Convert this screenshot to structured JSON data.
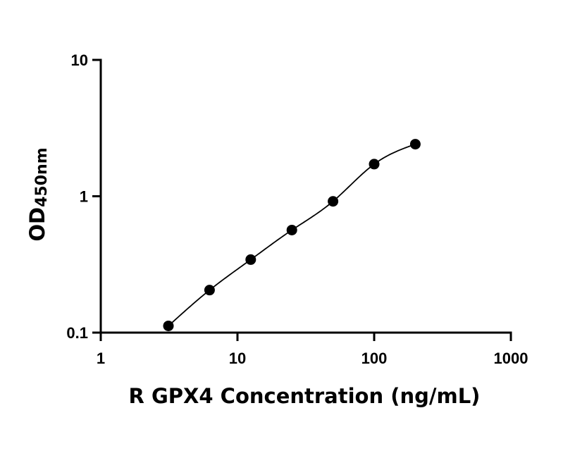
{
  "chart_data": {
    "type": "scatter",
    "title": "",
    "xlabel": "R GPX4 Concentration (ng/mL)",
    "ylabel": {
      "main": "OD",
      "subscript": "450nm"
    },
    "x_scale": "log",
    "y_scale": "log",
    "xlim": [
      1,
      1000
    ],
    "ylim": [
      0.1,
      10
    ],
    "x_ticks": [
      1,
      10,
      100,
      1000
    ],
    "x_tick_labels": [
      "1",
      "10",
      "100",
      "1000"
    ],
    "y_ticks": [
      0.1,
      1,
      10
    ],
    "y_tick_labels": [
      "0.1",
      "1",
      "10"
    ],
    "grid": false,
    "legend": "none",
    "series": [
      {
        "x": [
          3.125,
          6.25,
          12.5,
          25,
          50,
          100,
          200
        ],
        "y": [
          0.112,
          0.205,
          0.343,
          0.565,
          0.918,
          1.72,
          2.41
        ],
        "fit": "four-parameter logistic curve",
        "color": "#000000"
      }
    ]
  }
}
